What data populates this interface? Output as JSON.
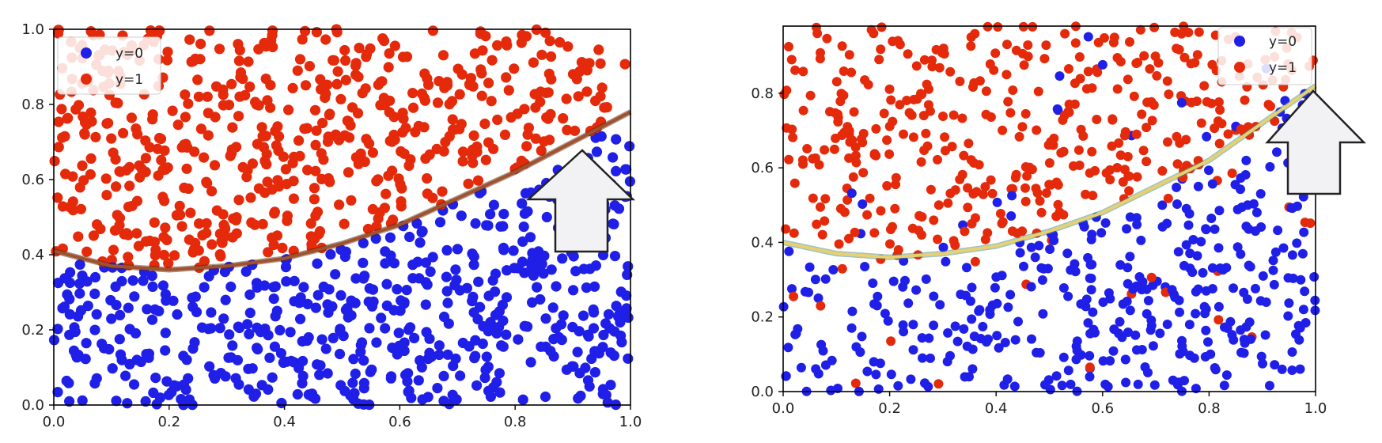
{
  "chart_data": [
    {
      "type": "scatter",
      "title": "",
      "xlabel": "",
      "ylabel": "",
      "xlim": [
        0.0,
        1.0
      ],
      "ylim": [
        0.0,
        1.0
      ],
      "x_ticks": [
        "0.0",
        "0.2",
        "0.4",
        "0.6",
        "0.8",
        "1.0"
      ],
      "y_ticks": [
        "0.0",
        "0.2",
        "0.4",
        "0.6",
        "0.8",
        "1.0"
      ],
      "legend_position": "top-left",
      "series": [
        {
          "name": "y=0",
          "color": "#1f1fe8",
          "region": "below boundary",
          "approx_points": 550
        },
        {
          "name": "y=1",
          "color": "#e42a0a",
          "region": "above boundary",
          "approx_points": 600
        }
      ],
      "noise": 0.0,
      "boundary": {
        "color": "#a0522d",
        "x": [
          0.0,
          0.1,
          0.2,
          0.3,
          0.4,
          0.5,
          0.6,
          0.7,
          0.8,
          0.9,
          1.0
        ],
        "y": [
          0.41,
          0.37,
          0.36,
          0.37,
          0.39,
          0.43,
          0.48,
          0.55,
          0.62,
          0.7,
          0.78
        ]
      },
      "annotation": "up-arrow"
    },
    {
      "type": "scatter",
      "title": "",
      "xlabel": "",
      "ylabel": "",
      "xlim": [
        0.0,
        1.0
      ],
      "ylim": [
        0.0,
        0.98
      ],
      "x_ticks": [
        "0.0",
        "0.2",
        "0.4",
        "0.6",
        "0.8",
        "1.0"
      ],
      "y_ticks": [
        "0.0",
        "0.2",
        "0.4",
        "0.6",
        "0.8"
      ],
      "legend_position": "top-right",
      "series": [
        {
          "name": "y=0",
          "color": "#1f1fe8",
          "region": "mostly below boundary",
          "approx_points": 450
        },
        {
          "name": "y=1",
          "color": "#e42a0a",
          "region": "mostly above boundary",
          "approx_points": 380
        }
      ],
      "noise": 0.12,
      "boundary": {
        "color": "#e8d070",
        "x": [
          0.0,
          0.1,
          0.2,
          0.3,
          0.4,
          0.5,
          0.6,
          0.7,
          0.8,
          0.9,
          1.0
        ],
        "y": [
          0.4,
          0.37,
          0.36,
          0.37,
          0.39,
          0.43,
          0.48,
          0.55,
          0.62,
          0.72,
          0.82
        ]
      },
      "annotation": "up-arrow"
    }
  ]
}
